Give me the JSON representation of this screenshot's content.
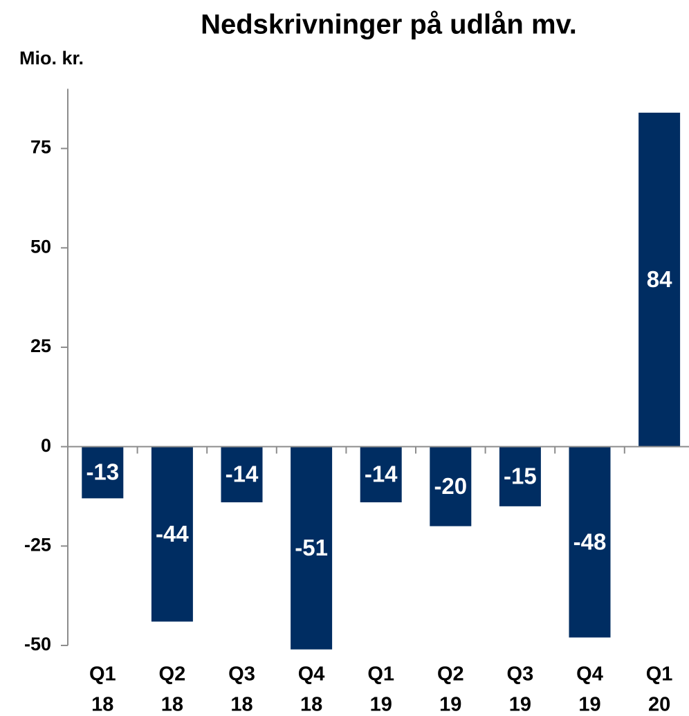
{
  "chart_data": {
    "type": "bar",
    "title": "Nedskrivninger på udlån mv.",
    "y_label": "Mio. kr.",
    "categories": [
      [
        "Q1",
        "18"
      ],
      [
        "Q2",
        "18"
      ],
      [
        "Q3",
        "18"
      ],
      [
        "Q4",
        "18"
      ],
      [
        "Q1",
        "19"
      ],
      [
        "Q2",
        "19"
      ],
      [
        "Q3",
        "19"
      ],
      [
        "Q4",
        "19"
      ],
      [
        "Q1",
        "20"
      ]
    ],
    "values": [
      -13,
      -44,
      -14,
      -51,
      -14,
      -20,
      -15,
      -48,
      84
    ],
    "color": "#002d62",
    "ylim": [
      -50,
      90
    ],
    "yticks": [
      -50,
      -25,
      0,
      25,
      50,
      75
    ],
    "grid": false
  }
}
